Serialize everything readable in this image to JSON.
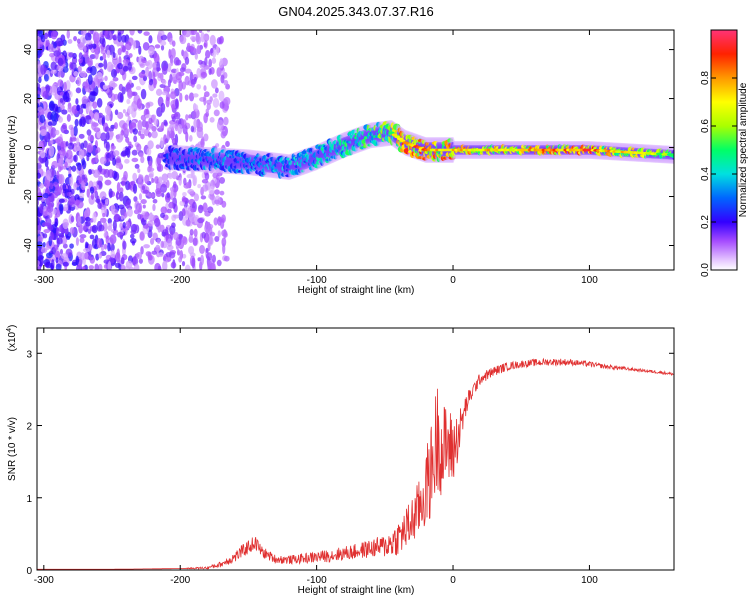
{
  "title": "GN04.2025.343.07.37.R16",
  "chart_data": [
    {
      "type": "heatmap",
      "xlabel": "Height of straight line (km)",
      "ylabel": "Frequency (Hz)",
      "xlim": [
        -305,
        162
      ],
      "ylim": [
        -50,
        48
      ],
      "xticks": [
        -300,
        -200,
        -100,
        0,
        100
      ],
      "xticklabels": [
        "-300",
        "-200",
        "-100",
        "0",
        "100"
      ],
      "yticks": [
        -40,
        -20,
        0,
        20,
        40
      ],
      "yticklabels": [
        "-40",
        "-20",
        "0",
        "20",
        "40"
      ],
      "ridge_x": [
        -210,
        -180,
        -150,
        -120,
        -100,
        -80,
        -60,
        -45,
        -35,
        -20,
        0,
        20,
        60,
        100,
        162
      ],
      "ridge_freq": [
        -4,
        -5,
        -6,
        -8,
        -4,
        1,
        5,
        6,
        2,
        -1,
        -1,
        -1,
        -1,
        -1,
        -3
      ],
      "ridge_amp": [
        0.3,
        0.35,
        0.35,
        0.4,
        0.45,
        0.5,
        0.55,
        0.65,
        0.95,
        0.85,
        0.85,
        0.8,
        0.85,
        0.9,
        0.6
      ],
      "noise_region": {
        "x": [
          -305,
          -185
        ],
        "freq": [
          -50,
          48
        ],
        "amplitude": [
          0.05,
          0.25
        ]
      },
      "colorbar": {
        "label": "Normalized spectral amplitude",
        "range": [
          0,
          1
        ],
        "ticks": [
          0,
          0.2,
          0.4,
          0.6,
          0.8
        ],
        "ticklabels": [
          "0.0",
          "0.2",
          "0.4",
          "0.6",
          "0.8"
        ]
      },
      "grid": false
    },
    {
      "type": "line",
      "xlabel": "Height of straight line (km)",
      "ylabel": "SNR (10 * v/v)",
      "yscale_label": "(x10",
      "yscale_exp": "4",
      "yscale_close": ")",
      "xlim": [
        -305,
        162
      ],
      "ylim": [
        0,
        3.35
      ],
      "xticks": [
        -300,
        -200,
        -100,
        0,
        100
      ],
      "xticklabels": [
        "-300",
        "-200",
        "-100",
        "0",
        "100"
      ],
      "yticks": [
        0,
        1,
        2,
        3
      ],
      "yticklabels": [
        "0",
        "1",
        "2",
        "3"
      ],
      "series": [
        {
          "color": "#e03030",
          "x": [
            -305,
            -250,
            -200,
            -180,
            -170,
            -160,
            -150,
            -145,
            -140,
            -130,
            -120,
            -110,
            -100,
            -90,
            -80,
            -70,
            -60,
            -50,
            -45,
            -40,
            -35,
            -30,
            -25,
            -20,
            -15,
            -12,
            -10,
            -8,
            -5,
            0,
            5,
            10,
            15,
            20,
            30,
            40,
            50,
            60,
            70,
            80,
            90,
            100,
            110,
            120,
            130,
            140,
            150,
            162
          ],
          "y": [
            0.01,
            0.01,
            0.02,
            0.03,
            0.08,
            0.18,
            0.32,
            0.38,
            0.25,
            0.15,
            0.14,
            0.16,
            0.18,
            0.2,
            0.23,
            0.26,
            0.3,
            0.33,
            0.38,
            0.45,
            0.55,
            0.68,
            0.85,
            1.1,
            1.45,
            1.8,
            1.95,
            1.55,
            1.75,
            1.65,
            1.95,
            2.3,
            2.5,
            2.65,
            2.75,
            2.82,
            2.85,
            2.87,
            2.88,
            2.88,
            2.87,
            2.85,
            2.82,
            2.8,
            2.78,
            2.76,
            2.74,
            2.71
          ],
          "noise": [
            0,
            0,
            0,
            0.02,
            0.04,
            0.08,
            0.1,
            0.1,
            0.08,
            0.06,
            0.06,
            0.07,
            0.08,
            0.09,
            0.1,
            0.11,
            0.13,
            0.16,
            0.2,
            0.25,
            0.3,
            0.35,
            0.4,
            0.55,
            0.7,
            0.8,
            0.8,
            0.7,
            0.6,
            0.5,
            0.3,
            0.15,
            0.1,
            0.08,
            0.07,
            0.06,
            0.05,
            0.05,
            0.05,
            0.05,
            0.04,
            0.04,
            0.03,
            0.03,
            0.02,
            0.02,
            0.02,
            0.02
          ]
        }
      ],
      "grid": false
    }
  ]
}
